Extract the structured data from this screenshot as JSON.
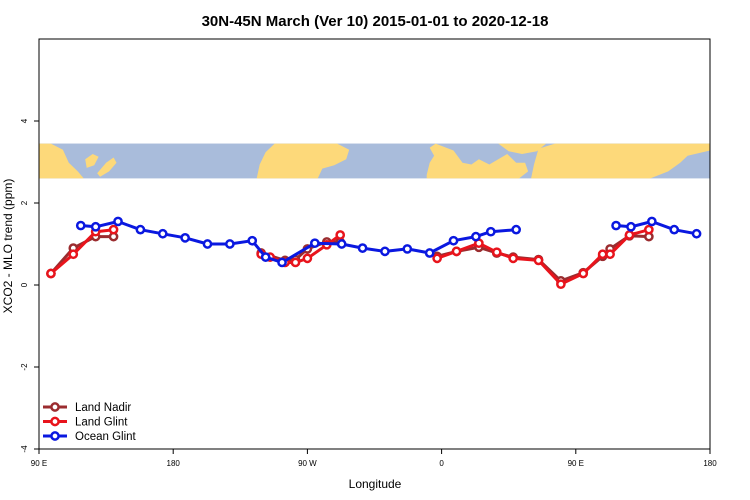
{
  "chart_data": {
    "type": "line",
    "title": "30N-45N March (Ver 10)   2015-01-01 to 2020-12-18",
    "xlabel": "Longitude",
    "ylabel": "XCO2 - MLO trend (ppm)",
    "xlim": [
      90,
      540
    ],
    "ylim": [
      -4,
      6
    ],
    "x_ticks": [
      {
        "value": 90,
        "label": "90 E"
      },
      {
        "value": 180,
        "label": "180"
      },
      {
        "value": 270,
        "label": "90 W"
      },
      {
        "value": 360,
        "label": "0"
      },
      {
        "value": 450,
        "label": "90 E"
      },
      {
        "value": 540,
        "label": "180"
      }
    ],
    "y_ticks": [
      {
        "value": -4,
        "label": "-4"
      },
      {
        "value": -2,
        "label": "-2"
      },
      {
        "value": 0,
        "label": "0"
      },
      {
        "value": 2,
        "label": "2"
      },
      {
        "value": 4,
        "label": "4"
      }
    ],
    "map_band": {
      "y_range": [
        2.6,
        3.45
      ],
      "ocean_color": "#a9bcdb",
      "land_color": "#fdd97a"
    },
    "series": [
      {
        "name": "Land Nadir",
        "color": "#9b2c2f",
        "segments": [
          [
            [
              98,
              0.28
            ],
            [
              113,
              0.9
            ],
            [
              128,
              1.18
            ],
            [
              140,
              1.18
            ]
          ],
          [
            [
              239,
              0.78
            ],
            [
              255,
              0.6
            ],
            [
              262,
              0.62
            ],
            [
              270,
              0.88
            ],
            [
              283,
              1.05
            ],
            [
              292,
              1.05
            ]
          ],
          [
            [
              357,
              0.7
            ],
            [
              370,
              0.82
            ],
            [
              385,
              0.92
            ],
            [
              397,
              0.78
            ],
            [
              408,
              0.68
            ],
            [
              425,
              0.62
            ],
            [
              440,
              0.1
            ],
            [
              455,
              0.3
            ],
            [
              468,
              0.7
            ],
            [
              473,
              0.88
            ],
            [
              486,
              1.2
            ],
            [
              499,
              1.18
            ]
          ]
        ]
      },
      {
        "name": "Land Glint",
        "color": "#e8141c",
        "segments": [
          [
            [
              98,
              0.28
            ],
            [
              113,
              0.75
            ],
            [
              128,
              1.3
            ],
            [
              140,
              1.35
            ]
          ],
          [
            [
              239,
              0.75
            ],
            [
              245,
              0.68
            ],
            [
              255,
              0.55
            ],
            [
              262,
              0.55
            ],
            [
              270,
              0.65
            ],
            [
              283,
              0.98
            ],
            [
              292,
              1.22
            ]
          ],
          [
            [
              357,
              0.65
            ],
            [
              370,
              0.82
            ],
            [
              385,
              1.02
            ],
            [
              397,
              0.8
            ],
            [
              408,
              0.65
            ],
            [
              425,
              0.6
            ],
            [
              440,
              0.02
            ],
            [
              455,
              0.28
            ],
            [
              468,
              0.75
            ],
            [
              473,
              0.75
            ],
            [
              486,
              1.22
            ],
            [
              499,
              1.35
            ]
          ]
        ]
      },
      {
        "name": "Ocean Glint",
        "color": "#0a18e0",
        "segments": [
          [
            [
              118,
              1.45
            ],
            [
              128,
              1.42
            ],
            [
              143,
              1.55
            ],
            [
              158,
              1.35
            ],
            [
              173,
              1.25
            ],
            [
              188,
              1.15
            ],
            [
              203,
              1.0
            ],
            [
              218,
              1.0
            ],
            [
              233,
              1.08
            ],
            [
              242,
              0.68
            ],
            [
              253,
              0.55
            ],
            [
              275,
              1.02
            ],
            [
              293,
              1.0
            ],
            [
              307,
              0.9
            ],
            [
              322,
              0.82
            ],
            [
              337,
              0.88
            ],
            [
              352,
              0.78
            ],
            [
              368,
              1.08
            ],
            [
              383,
              1.18
            ],
            [
              393,
              1.3
            ],
            [
              410,
              1.35
            ]
          ],
          [
            [
              477,
              1.45
            ],
            [
              487,
              1.42
            ],
            [
              501,
              1.55
            ],
            [
              516,
              1.35
            ],
            [
              531,
              1.25
            ]
          ]
        ]
      }
    ]
  }
}
